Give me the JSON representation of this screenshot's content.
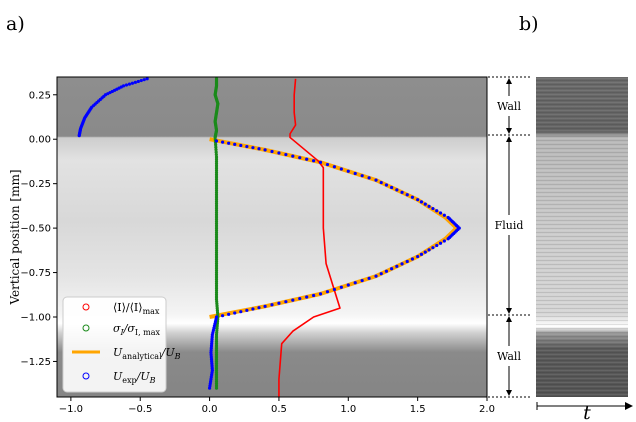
{
  "panels": {
    "a": "a)",
    "b": "b)"
  },
  "chart_data": {
    "type": "scatter",
    "ylabel": "Vertical position [mm]",
    "xlabel": "",
    "xlim": [
      -1.1,
      2.0
    ],
    "ylim": [
      -1.45,
      0.35
    ],
    "xticks": [
      "−1.0",
      "−0.5",
      "0.0",
      "0.5",
      "1.0",
      "1.5",
      "2.0"
    ],
    "xtick_values": [
      -1.0,
      -0.5,
      0.0,
      0.5,
      1.0,
      1.5,
      2.0
    ],
    "yticks": [
      "0.25",
      "0.00",
      "−0.25",
      "−0.50",
      "−0.75",
      "−1.00",
      "−1.25"
    ],
    "ytick_values": [
      0.25,
      0.0,
      -0.25,
      -0.5,
      -0.75,
      -1.0,
      -1.25
    ],
    "legend_position": "lower-left",
    "regions": [
      {
        "label": "Wall",
        "from": 0.35,
        "to": 0.0
      },
      {
        "label": "Fluid",
        "from": 0.0,
        "to": -1.0
      },
      {
        "label": "Wall",
        "from": -1.0,
        "to": -1.45
      }
    ],
    "series": [
      {
        "name": "⟨I⟩/⟨I⟩max",
        "style": "line",
        "color": "#ff0000",
        "points": [
          [
            0.62,
            0.34
          ],
          [
            0.61,
            0.25
          ],
          [
            0.61,
            0.15
          ],
          [
            0.62,
            0.08
          ],
          [
            0.58,
            0.03
          ],
          [
            0.58,
            0.01
          ],
          [
            0.78,
            -0.12
          ],
          [
            0.82,
            -0.16
          ],
          [
            0.82,
            -0.3
          ],
          [
            0.82,
            -0.5
          ],
          [
            0.84,
            -0.7
          ],
          [
            0.9,
            -0.85
          ],
          [
            0.94,
            -0.95
          ],
          [
            0.75,
            -1.0
          ],
          [
            0.6,
            -1.08
          ],
          [
            0.52,
            -1.15
          ],
          [
            0.51,
            -1.25
          ],
          [
            0.5,
            -1.35
          ],
          [
            0.5,
            -1.45
          ]
        ]
      },
      {
        "name": "σI/σI,max",
        "style": "scatter",
        "color": "#1a8a1a",
        "points": [
          [
            0.05,
            0.34
          ],
          [
            0.05,
            0.3
          ],
          [
            0.04,
            0.25
          ],
          [
            0.06,
            0.2
          ],
          [
            0.05,
            0.15
          ],
          [
            0.04,
            0.1
          ],
          [
            0.05,
            0.05
          ],
          [
            0.04,
            0.01
          ],
          [
            0.05,
            -0.1
          ],
          [
            0.05,
            -0.2
          ],
          [
            0.05,
            -0.3
          ],
          [
            0.05,
            -0.4
          ],
          [
            0.05,
            -0.5
          ],
          [
            0.05,
            -0.6
          ],
          [
            0.05,
            -0.7
          ],
          [
            0.05,
            -0.8
          ],
          [
            0.05,
            -0.9
          ],
          [
            0.06,
            -1.0
          ],
          [
            0.05,
            -1.1
          ],
          [
            0.05,
            -1.2
          ],
          [
            0.05,
            -1.3
          ],
          [
            0.05,
            -1.4
          ]
        ]
      },
      {
        "name": "Uanalytical/UB",
        "style": "thick-line",
        "color": "#ffa500",
        "points": [
          [
            0.0,
            0.0
          ],
          [
            0.4,
            -0.06
          ],
          [
            0.8,
            -0.13
          ],
          [
            1.2,
            -0.23
          ],
          [
            1.5,
            -0.34
          ],
          [
            1.7,
            -0.44
          ],
          [
            1.78,
            -0.5
          ],
          [
            1.7,
            -0.56
          ],
          [
            1.5,
            -0.66
          ],
          [
            1.2,
            -0.77
          ],
          [
            0.8,
            -0.87
          ],
          [
            0.4,
            -0.94
          ],
          [
            0.0,
            -1.0
          ]
        ]
      },
      {
        "name": "Uexp/UB",
        "style": "scatter",
        "color": "#0000ff",
        "points": [
          [
            -0.45,
            0.34
          ],
          [
            -0.62,
            0.3
          ],
          [
            -0.75,
            0.25
          ],
          [
            -0.85,
            0.18
          ],
          [
            -0.9,
            0.12
          ],
          [
            -0.93,
            0.06
          ],
          [
            -0.94,
            0.02
          ],
          [
            0.05,
            -0.01
          ],
          [
            0.4,
            -0.06
          ],
          [
            0.8,
            -0.13
          ],
          [
            1.2,
            -0.23
          ],
          [
            1.5,
            -0.34
          ],
          [
            1.72,
            -0.44
          ],
          [
            1.8,
            -0.5
          ],
          [
            1.72,
            -0.56
          ],
          [
            1.5,
            -0.66
          ],
          [
            1.2,
            -0.77
          ],
          [
            0.8,
            -0.87
          ],
          [
            0.4,
            -0.94
          ],
          [
            0.05,
            -1.0
          ],
          [
            0.02,
            -1.1
          ],
          [
            0.01,
            -1.2
          ],
          [
            0.02,
            -1.3
          ],
          [
            0.0,
            -1.4
          ]
        ]
      }
    ]
  },
  "legend": {
    "entries": [
      {
        "key": "intensity",
        "base": "⟨I⟩/⟨I⟩",
        "sub": "max",
        "color": "#ff0000",
        "marker": "circle"
      },
      {
        "key": "sigma",
        "base": "σ",
        "sub1": "I",
        "mid": "/σ",
        "sub": "I, max",
        "color": "#1a8a1a",
        "marker": "circle"
      },
      {
        "key": "uanalytical",
        "base": "U",
        "sub": "analytical",
        "tail": "/U",
        "tailsub": "B",
        "color": "#ffa500",
        "marker": "line"
      },
      {
        "key": "uexp",
        "base": "U",
        "sub": "exp",
        "tail": "/U",
        "tailsub": "B",
        "color": "#0000ff",
        "marker": "circle"
      }
    ]
  },
  "annotations": {
    "wall_top": "Wall",
    "fluid": "Fluid",
    "wall_bottom": "Wall"
  },
  "panel_b": {
    "axis_label": "t"
  }
}
